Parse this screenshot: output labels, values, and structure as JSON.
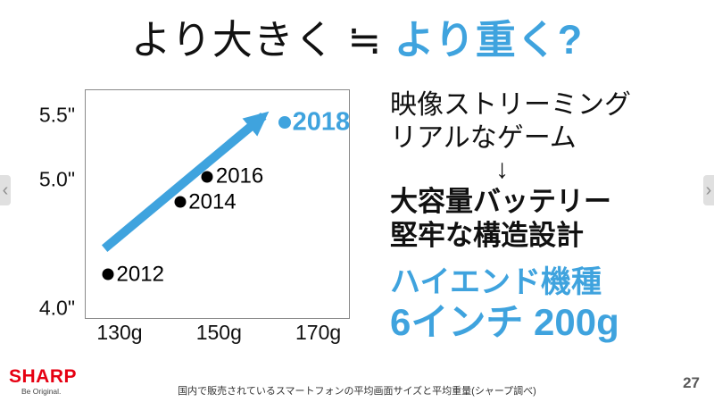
{
  "nav": {
    "prev": "‹",
    "next": "›"
  },
  "title": {
    "black": "より大きく ≒ ",
    "blue": "より重く?"
  },
  "right_panel": {
    "line1": "映像ストリーミング",
    "line2": "リアルなゲーム",
    "down_arrow": "↓",
    "bold1": "大容量バッテリー",
    "bold2": "堅牢な構造設計",
    "blue1": "ハイエンド機種",
    "blue2": "6インチ 200g"
  },
  "footer": {
    "logo": "SHARP",
    "tagline": "Be Original.",
    "caption": "国内で販売されているスマートフォンの平均画面サイズと平均重量(シャープ調べ)",
    "page_number": "27"
  },
  "colors": {
    "accent_blue": "#3FA3DE",
    "sharp_red": "#E60012"
  },
  "chart_data": {
    "type": "scatter",
    "title": "",
    "points": [
      {
        "label": "2012",
        "x": 127.5,
        "y": 4.27,
        "highlight": false
      },
      {
        "label": "2014",
        "x": 142.0,
        "y": 4.83,
        "highlight": false
      },
      {
        "label": "2016",
        "x": 147.5,
        "y": 5.03,
        "highlight": false
      },
      {
        "label": "2018",
        "x": 163.0,
        "y": 5.45,
        "highlight": true
      }
    ],
    "x_ticks": [
      {
        "value": 130,
        "label": "130g"
      },
      {
        "value": 150,
        "label": "150g"
      },
      {
        "value": 170,
        "label": "170g"
      }
    ],
    "y_ticks": [
      {
        "value": 5.5,
        "label": "5.5\""
      },
      {
        "value": 5.0,
        "label": "5.0\""
      },
      {
        "value": 4.0,
        "label": "4.0\""
      }
    ],
    "xlim": [
      123,
      176
    ],
    "ylim": [
      3.93,
      5.7
    ],
    "arrow": {
      "x1": 126.8,
      "y1": 4.47,
      "x2": 158.8,
      "y2": 5.5
    },
    "grid": false,
    "legend": false
  }
}
